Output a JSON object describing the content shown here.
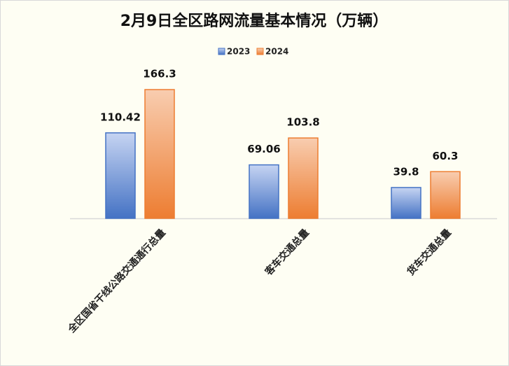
{
  "chart_data": {
    "type": "bar",
    "title": "2月9日全区路网流量基本情况（万辆）",
    "categories": [
      "全区国省干线公路交通通行总量",
      "客车交通总量",
      "货车交通总量"
    ],
    "series": [
      {
        "name": "2023",
        "color": "#4472c4",
        "values": [
          110.42,
          69.06,
          39.8
        ]
      },
      {
        "name": "2024",
        "color": "#ed7d31",
        "values": [
          166.3,
          103.8,
          60.3
        ]
      }
    ],
    "legend": "top"
  }
}
